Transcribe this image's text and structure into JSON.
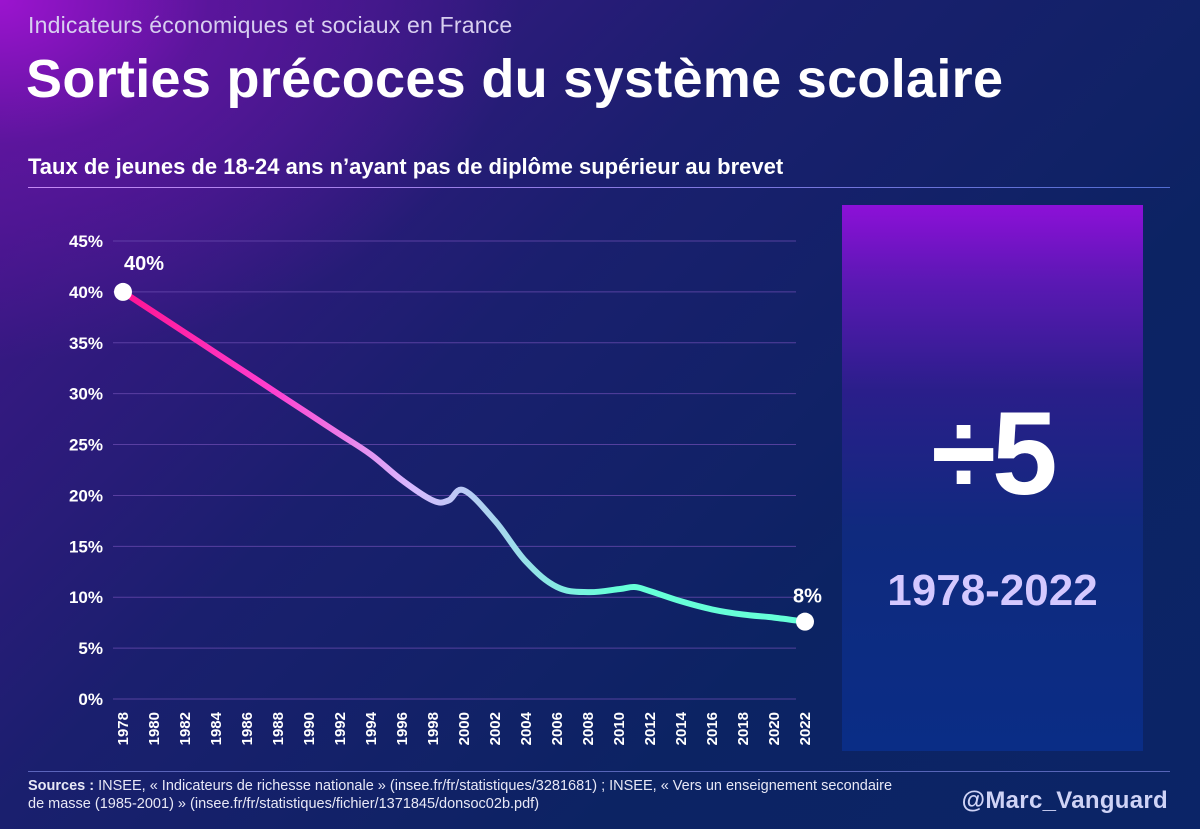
{
  "header": {
    "kicker": "Indicateurs économiques et sociaux en France",
    "title": "Sorties précoces du système scolaire",
    "subtitle": "Taux de jeunes de 18-24 ans n’ayant pas de diplôme supérieur au brevet"
  },
  "panel": {
    "big_value": "÷5",
    "period": "1978-2022"
  },
  "footer": {
    "sources_label": "Sources :",
    "sources_text": " INSEE, « Indicateurs de richesse nationale » (insee.fr/fr/statistiques/3281681) ; INSEE, « Vers un enseignement secondaire de masse (1985-2001) » (insee.fr/fr/statistiques/fichier/1371845/donsoc02b.pdf)",
    "handle": "@Marc_Vanguard"
  },
  "colors": {
    "line_start": "#ff1493",
    "line_mid": "#ff3fd0",
    "line_light": "#d8b8ff",
    "line_end": "#66ffd8",
    "grid": "#6a4bb0"
  },
  "chart_data": {
    "type": "line",
    "x": [
      1978,
      1980,
      1982,
      1984,
      1986,
      1988,
      1990,
      1992,
      1994,
      1996,
      1998,
      1999,
      2000,
      2002,
      2004,
      2006,
      2008,
      2010,
      2011,
      2012,
      2014,
      2016,
      2018,
      2020,
      2022
    ],
    "series": [
      {
        "values": [
          40,
          38,
          36,
          34,
          32,
          30,
          28,
          26,
          24,
          21.5,
          19.5,
          19.5,
          20.5,
          17.5,
          13.5,
          11,
          10.5,
          10.8,
          11,
          10.6,
          9.6,
          8.8,
          8.3,
          8,
          7.6
        ]
      }
    ],
    "xticks": [
      1978,
      1980,
      1982,
      1984,
      1986,
      1988,
      1990,
      1992,
      1994,
      1996,
      1998,
      2000,
      2002,
      2004,
      2006,
      2008,
      2010,
      2012,
      2014,
      2016,
      2018,
      2020,
      2022
    ],
    "yticks": [
      "0%",
      "5%",
      "10%",
      "15%",
      "20%",
      "25%",
      "30%",
      "35%",
      "40%",
      "45%"
    ],
    "ylim": [
      0,
      45
    ],
    "xlim": [
      1978,
      2022
    ],
    "grid": true,
    "annotations": [
      {
        "x": 1978,
        "y": 40,
        "label": "40%"
      },
      {
        "x": 2022,
        "y": 7.6,
        "label": "8%"
      }
    ]
  }
}
